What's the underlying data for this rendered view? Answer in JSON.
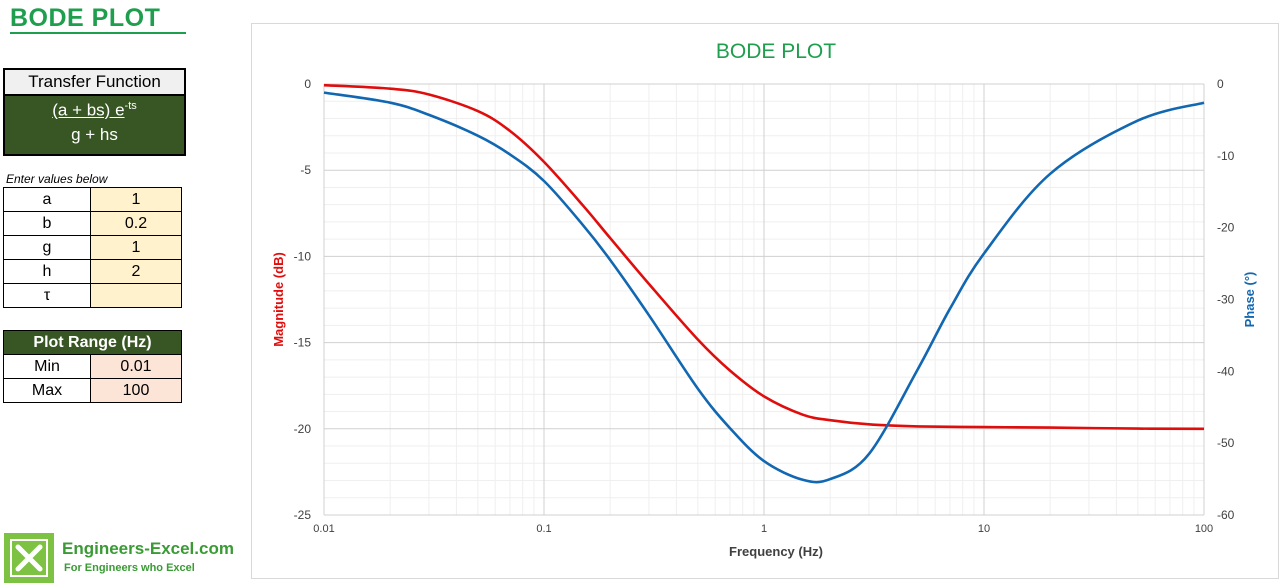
{
  "sheet": {
    "title": "BODE PLOT"
  },
  "transfer_function": {
    "header": "Transfer Function",
    "numerator": "(a + bs) e",
    "exponent": "-ts",
    "denominator": "g + hs"
  },
  "inputs": {
    "instruction": "Enter values below",
    "params": [
      {
        "label": "a",
        "value": "1"
      },
      {
        "label": "b",
        "value": "0.2"
      },
      {
        "label": "g",
        "value": "1"
      },
      {
        "label": "h",
        "value": "2"
      },
      {
        "label": "τ",
        "value": ""
      }
    ]
  },
  "plot_range": {
    "header": "Plot Range (Hz)",
    "rows": [
      {
        "label": "Min",
        "value": "0.01"
      },
      {
        "label": "Max",
        "value": "100"
      }
    ]
  },
  "logo": {
    "title": "Engineers-Excel.com",
    "tagline": "For Engineers who Excel"
  },
  "colors": {
    "magnitude": "#e00d0d",
    "phase": "#1167b1",
    "title": "#1f9e4e",
    "panel_green": "#375623"
  },
  "chart_data": {
    "type": "line",
    "title": "BODE PLOT",
    "xlabel": "Frequency (Hz)",
    "ylabel": "Magnitude (dB)",
    "y2label": "Phase (°)",
    "xscale": "log",
    "xlim": [
      0.01,
      100
    ],
    "ylim": [
      -25,
      0
    ],
    "y2lim": [
      -60,
      0
    ],
    "x_ticks": [
      "0.01",
      "0.1",
      "1",
      "10",
      "100"
    ],
    "y_ticks": [
      "0",
      "-5",
      "-10",
      "-15",
      "-20",
      "-25"
    ],
    "y2_ticks": [
      "0",
      "-10",
      "-20",
      "-30",
      "-40",
      "-50",
      "-60"
    ],
    "grid": true,
    "series": [
      {
        "name": "Magnitude (dB)",
        "axis": "left",
        "x": [
          0.01,
          0.02,
          0.03,
          0.05,
          0.07,
          0.1,
          0.15,
          0.2,
          0.3,
          0.5,
          0.7,
          1,
          1.5,
          2,
          3,
          5,
          10,
          20,
          50,
          100
        ],
        "y": [
          -0.07,
          -0.27,
          -0.61,
          -1.57,
          -2.72,
          -4.52,
          -7.03,
          -8.94,
          -11.6,
          -14.82,
          -16.62,
          -18.12,
          -19.18,
          -19.5,
          -19.74,
          -19.86,
          -19.9,
          -19.93,
          -19.99,
          -20.0
        ]
      },
      {
        "name": "Phase (°)",
        "axis": "right",
        "x": [
          0.01,
          0.02,
          0.03,
          0.05,
          0.07,
          0.1,
          0.15,
          0.2,
          0.3,
          0.5,
          0.7,
          1,
          1.5,
          2,
          3,
          5,
          7,
          10,
          20,
          50,
          100
        ],
        "y": [
          -1.2,
          -2.6,
          -4.3,
          -7.2,
          -9.8,
          -13.5,
          -19.6,
          -24.5,
          -32.2,
          -42.4,
          -47.9,
          -52.5,
          -55.1,
          -55.0,
          -51.5,
          -39.7,
          -31.3,
          -23.6,
          -12.5,
          -5.1,
          -2.6
        ]
      }
    ]
  }
}
